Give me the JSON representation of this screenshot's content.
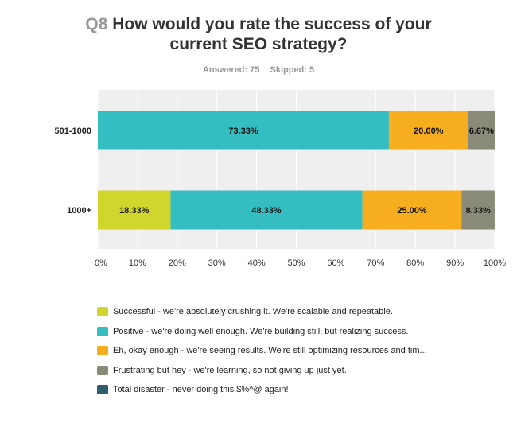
{
  "header": {
    "qnum": "Q8",
    "title_line1": "How would you rate the success of your",
    "title_line2": "current SEO strategy?",
    "answered": "Answered: 75",
    "skipped": "Skipped: 5"
  },
  "chart_data": {
    "type": "bar",
    "orientation": "horizontal",
    "stacked": true,
    "categories": [
      "501-1000",
      "1000+"
    ],
    "xlim": [
      0,
      100
    ],
    "x_ticks": [
      "0%",
      "10%",
      "20%",
      "30%",
      "40%",
      "50%",
      "60%",
      "70%",
      "80%",
      "90%",
      "100%"
    ],
    "grid": true,
    "legend_position": "bottom",
    "series": [
      {
        "name": "Successful - we're absolutely crushing it. We're scalable and repeatable.",
        "color": "#d0d62b",
        "values": [
          0,
          18.33
        ]
      },
      {
        "name": "Positive - we're doing well enough. We're building still, but realizing success.",
        "color": "#35bec1",
        "values": [
          73.33,
          48.33
        ]
      },
      {
        "name": "Eh, okay enough - we're seeing results. We're still optimizing resources and tim...",
        "color": "#f6ae1f",
        "values": [
          20.0,
          25.0
        ]
      },
      {
        "name": "Frustrating but hey - we're learning, so not giving up just yet.",
        "color": "#8a8a78",
        "values": [
          6.67,
          8.33
        ]
      },
      {
        "name": "Total disaster - never doing this $%^@ again!",
        "color": "#2f5f6e",
        "values": [
          0,
          0
        ]
      }
    ]
  }
}
